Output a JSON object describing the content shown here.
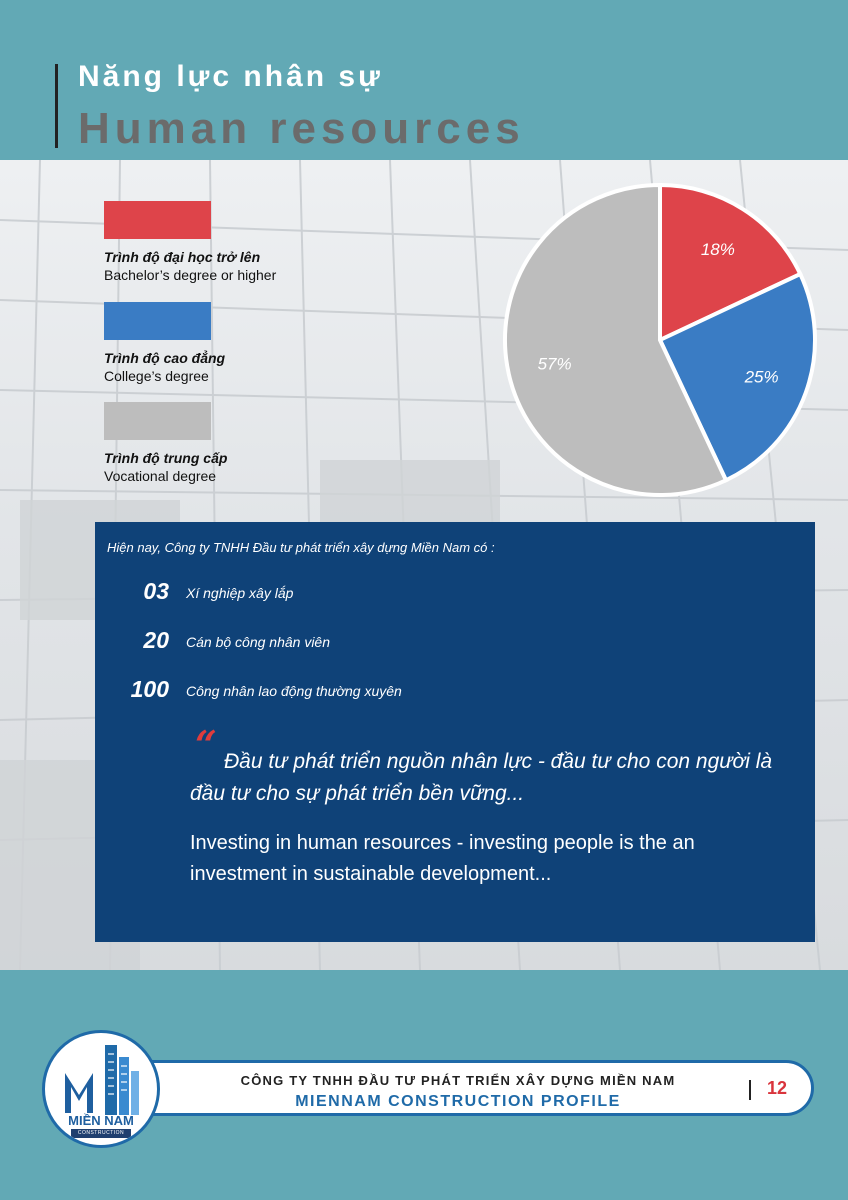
{
  "header": {
    "title_vi": "Năng lực nhân sự",
    "title_en": "Human resources"
  },
  "legend": [
    {
      "label_vi": "Trình độ đại học trở lên",
      "label_en": "Bachelor’s degree or higher",
      "color": "#de444a"
    },
    {
      "label_vi": "Trình độ cao đẳng",
      "label_en": "College’s degree",
      "color": "#3a7cc4"
    },
    {
      "label_vi": "Trình độ trung cấp",
      "label_en": "Vocational degree",
      "color": "#bdbdbd"
    }
  ],
  "chart_data": {
    "type": "pie",
    "categories": [
      "Bachelor’s degree or higher",
      "College’s degree",
      "Vocational degree"
    ],
    "values": [
      18,
      25,
      57
    ],
    "labels": [
      "18%",
      "25%",
      "57%"
    ],
    "colors": [
      "#de444a",
      "#3a7cc4",
      "#bdbdbd"
    ],
    "legend": "left"
  },
  "info": {
    "intro": "Hiện nay, Công ty TNHH Đầu tư phát triển xây dựng Miền Nam có :",
    "stats": [
      {
        "number": "03",
        "label": "Xí nghiệp xây lắp"
      },
      {
        "number": "20",
        "label": "Cán bộ công nhân viên"
      },
      {
        "number": "100",
        "label": "Công nhân lao động thường xuyên"
      }
    ],
    "quote_mark": "“",
    "quote_vi": "Đầu tư phát triển nguồn nhân lực - đầu tư cho con người là đầu tư cho sự phát triển bền vững...",
    "quote_en": "Investing in human resources - investing people is the an investment in sustainable development..."
  },
  "footer": {
    "company": "CÔNG TY TNHH ĐẦU TƯ PHÁT TRIỂN XÂY DỰNG MIỀN NAM",
    "profile": "MIENNAM CONSTRUCTION PROFILE",
    "page_number": "12",
    "logo_name": "MIỀN NAM",
    "logo_sub": "CONSTRUCTION"
  }
}
